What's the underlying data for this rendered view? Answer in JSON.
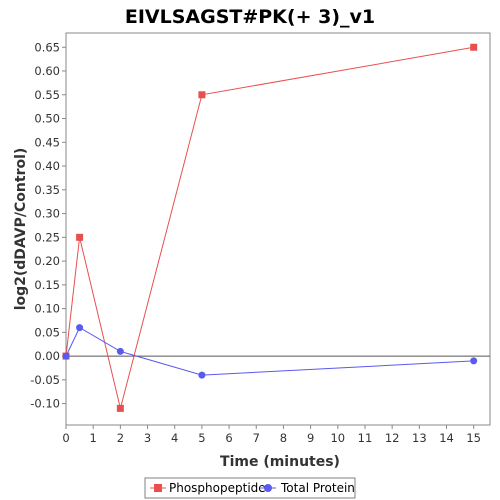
{
  "chart_data": {
    "type": "line",
    "title": "EIVLSAGST#PK(+ 3)_v1",
    "xlabel": "Time (minutes)",
    "ylabel": "log2(dDAVP/Control)",
    "xlim": [
      0,
      15.6
    ],
    "ylim": [
      -0.145,
      0.68
    ],
    "x_ticks": [
      0,
      1,
      2,
      3,
      4,
      5,
      6,
      7,
      8,
      9,
      10,
      11,
      12,
      13,
      14,
      15
    ],
    "y_ticks": [
      -0.1,
      -0.05,
      0.0,
      0.05,
      0.1,
      0.15,
      0.2,
      0.25,
      0.3,
      0.35,
      0.4,
      0.45,
      0.5,
      0.55,
      0.6,
      0.65
    ],
    "y_tick_labels": [
      "-0.10",
      "-0.05",
      "0.00",
      "0.05",
      "0.10",
      "0.15",
      "0.20",
      "0.25",
      "0.30",
      "0.35",
      "0.40",
      "0.45",
      "0.50",
      "0.55",
      "0.60",
      "0.65"
    ],
    "grid": false,
    "zero_line": true,
    "legend_position": "bottom",
    "series": [
      {
        "name": "Phosphopeptide",
        "color": "#e85050",
        "marker": "square",
        "x": [
          0,
          0.5,
          2,
          5,
          15
        ],
        "y": [
          0.0,
          0.25,
          -0.11,
          0.55,
          0.65
        ]
      },
      {
        "name": "Total Protein",
        "color": "#5a5aee",
        "marker": "circle",
        "x": [
          0,
          0.5,
          2,
          5,
          15
        ],
        "y": [
          0.0,
          0.06,
          0.01,
          -0.04,
          -0.01
        ]
      }
    ]
  }
}
